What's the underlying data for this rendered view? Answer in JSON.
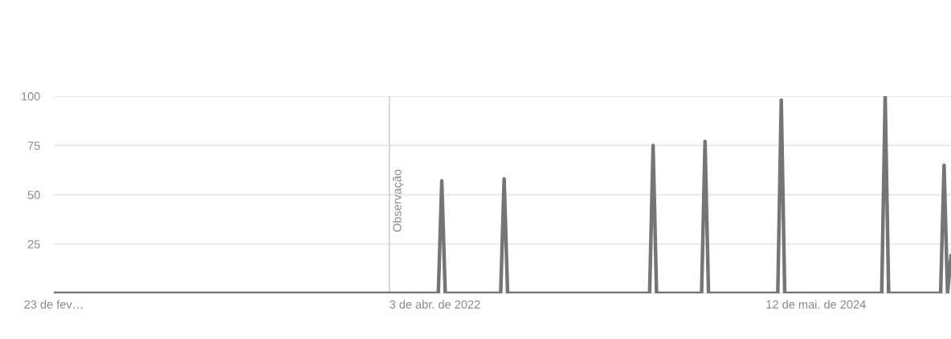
{
  "chart_data": {
    "type": "line",
    "x": [
      "2020-02-23",
      "2022-04-10",
      "2022-04-17",
      "2022-04-24",
      "2022-08-14",
      "2022-08-21",
      "2022-08-28",
      "2023-06-11",
      "2023-06-18",
      "2023-06-25",
      "2023-09-24",
      "2023-10-01",
      "2023-10-08",
      "2024-02-25",
      "2024-03-03",
      "2024-03-10",
      "2024-09-22",
      "2024-09-29",
      "2024-10-06",
      "2025-01-19",
      "2025-01-26",
      "2025-02-02",
      "2025-02-09"
    ],
    "series": [
      {
        "color": "#757575",
        "values": [
          0,
          0,
          57,
          0,
          0,
          58,
          0,
          0,
          75,
          0,
          0,
          77,
          0,
          0,
          98,
          0,
          0,
          100,
          0,
          0,
          65,
          0,
          19
        ]
      }
    ],
    "xlim": [
      "2020-02-23",
      "2025-02-09"
    ],
    "xticks": [
      {
        "value": "2020-02-23",
        "label": "23 de fev…"
      },
      {
        "value": "2022-04-03",
        "label": "3 de abr. de 2022"
      },
      {
        "value": "2024-05-12",
        "label": "12 de mai. de 2024"
      }
    ],
    "ylim": [
      0,
      100
    ],
    "yticks": [
      25,
      50,
      75,
      100
    ],
    "grid": "y",
    "marker": "none",
    "line_style": "solid",
    "ref_lines": [
      {
        "axis": "x",
        "value": "2022-01-01",
        "label": "Observação",
        "color": "#c8c8c8"
      }
    ]
  }
}
